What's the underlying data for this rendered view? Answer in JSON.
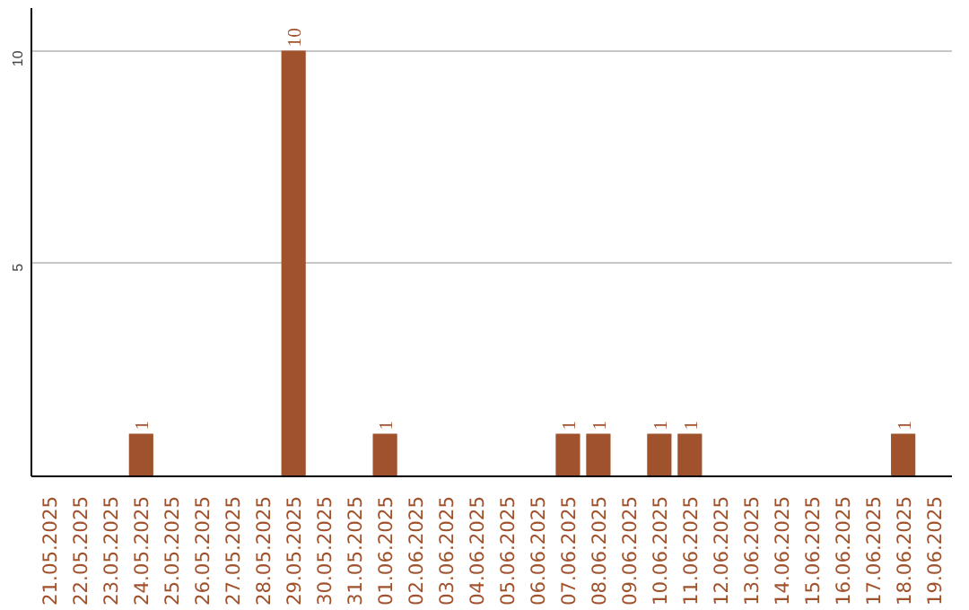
{
  "chart_data": {
    "type": "bar",
    "categories": [
      "21.05.2025",
      "22.05.2025",
      "23.05.2025",
      "24.05.2025",
      "25.05.2025",
      "26.05.2025",
      "27.05.2025",
      "28.05.2025",
      "29.05.2025",
      "30.05.2025",
      "31.05.2025",
      "01.06.2025",
      "02.06.2025",
      "03.06.2025",
      "04.06.2025",
      "05.06.2025",
      "06.06.2025",
      "07.06.2025",
      "08.06.2025",
      "09.06.2025",
      "10.06.2025",
      "11.06.2025",
      "12.06.2025",
      "13.06.2025",
      "14.06.2025",
      "15.06.2025",
      "16.06.2025",
      "17.06.2025",
      "18.06.2025",
      "19.06.2025"
    ],
    "values": [
      0,
      0,
      0,
      1,
      0,
      0,
      0,
      0,
      10,
      0,
      0,
      1,
      0,
      0,
      0,
      0,
      0,
      1,
      1,
      0,
      1,
      1,
      0,
      0,
      0,
      0,
      0,
      0,
      1,
      0
    ],
    "value_labels": [
      null,
      null,
      null,
      "1",
      null,
      null,
      null,
      null,
      "10",
      null,
      null,
      "1",
      null,
      null,
      null,
      null,
      null,
      "1",
      "1",
      null,
      "1",
      "1",
      null,
      null,
      null,
      null,
      null,
      null,
      "1",
      null
    ],
    "color": "#a0522d",
    "ylim": [
      0,
      11
    ],
    "yticks": [
      5,
      10
    ],
    "grid": "y"
  }
}
